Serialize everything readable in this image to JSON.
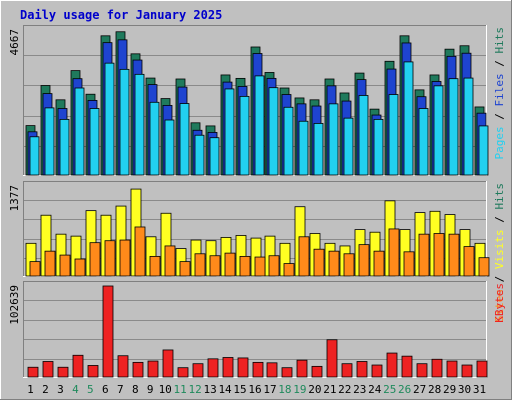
{
  "chart_data": {
    "type": "bar",
    "title": "Daily usage for January 2025",
    "categories": [
      "1",
      "2",
      "3",
      "4",
      "5",
      "6",
      "7",
      "8",
      "9",
      "10",
      "11",
      "12",
      "13",
      "14",
      "15",
      "16",
      "17",
      "18",
      "19",
      "20",
      "21",
      "22",
      "23",
      "24",
      "25",
      "26",
      "27",
      "28",
      "29",
      "30",
      "31"
    ],
    "weekend_days": [
      "4",
      "5",
      "11",
      "12",
      "18",
      "19",
      "25",
      "26"
    ],
    "colors": {
      "hits": "#1f7a5c",
      "files": "#1e44d0",
      "pages": "#22d0f0",
      "visits": "#ffff22",
      "sites": "#ff8a1a",
      "kbytes": "#ee2222",
      "title": "#0000cc",
      "weekend": "#1f8a5c",
      "panel": "#c0c0c0"
    },
    "panels": [
      {
        "name": "top",
        "max_label": "4667",
        "ymax": 4667,
        "right_labels": [
          "Pages",
          "Files",
          "Hits"
        ],
        "series": [
          {
            "name": "Hits",
            "values": [
              1590,
              2880,
              2420,
              3360,
              2600,
              4480,
              4610,
              3900,
              3120,
              2460,
              3090,
              1680,
              1580,
              3220,
              3110,
              4120,
              3300,
              2800,
              2480,
              2420,
              3090,
              2640,
              3280,
              2120,
              3660,
              4480,
              2740,
              3220,
              4050,
              4160,
              2190
            ]
          },
          {
            "name": "Files",
            "values": [
              1390,
              2620,
              2140,
              3100,
              2400,
              4260,
              4350,
              3700,
              2910,
              2240,
              2830,
              1440,
              1370,
              2990,
              2850,
              3910,
              3110,
              2590,
              2290,
              2220,
              2870,
              2380,
              3070,
              1930,
              3410,
              4250,
              2520,
              3010,
              3820,
              3920,
              1990
            ]
          },
          {
            "name": "Pages",
            "values": [
              1230,
              2160,
              1790,
              2800,
              2140,
              3600,
              3400,
              3240,
              2340,
              1770,
              2300,
              1280,
              1200,
              2770,
              2530,
              3190,
              2810,
              2180,
              1730,
              1660,
              2290,
              1830,
              2560,
              1790,
              2590,
              3640,
              2140,
              2870,
              3100,
              3120,
              1580
            ]
          }
        ]
      },
      {
        "name": "middle",
        "max_label": "1377",
        "ymax": 1377,
        "right_labels": [
          "Sites",
          "Visits",
          "Hits"
        ],
        "series": [
          {
            "name": "Visits",
            "values": [
              500,
              930,
              640,
              610,
              1000,
              930,
              1070,
              1330,
              600,
              960,
              420,
              550,
              540,
              590,
              620,
              580,
              610,
              500,
              1060,
              650,
              500,
              460,
              710,
              670,
              1150,
              710,
              970,
              990,
              940,
              710,
              500
            ]
          },
          {
            "name": "Sites",
            "values": [
              220,
              380,
              320,
              260,
              510,
              540,
              550,
              750,
              300,
              460,
              220,
              340,
              310,
              350,
              300,
              290,
              310,
              190,
              600,
              410,
              380,
              340,
              480,
              380,
              720,
              370,
              640,
              650,
              640,
              450,
              280
            ]
          }
        ]
      },
      {
        "name": "bottom",
        "max_label": "102639",
        "ymax": 102639,
        "right_labels": [
          "KBytes"
        ],
        "series": [
          {
            "name": "KBytes",
            "values": [
              11000,
              17500,
              11000,
              24500,
              13000,
              102639,
              24000,
              16500,
              18000,
              30500,
              10500,
              15000,
              20500,
              22000,
              21500,
              16500,
              16000,
              10500,
              19000,
              12000,
              42000,
              15000,
              17500,
              13500,
              27000,
              23500,
              15000,
              20000,
              18000,
              13500,
              18000
            ]
          }
        ]
      }
    ]
  }
}
